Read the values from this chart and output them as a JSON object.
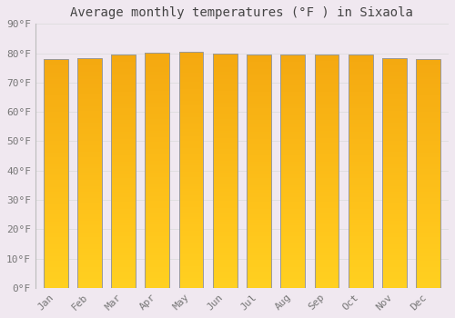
{
  "title": "Average monthly temperatures (°F ) in Sixaola",
  "months": [
    "Jan",
    "Feb",
    "Mar",
    "Apr",
    "May",
    "Jun",
    "Jul",
    "Aug",
    "Sep",
    "Oct",
    "Nov",
    "Dec"
  ],
  "values": [
    78.1,
    78.4,
    79.5,
    80.1,
    80.6,
    80.0,
    79.5,
    79.5,
    79.7,
    79.5,
    78.4,
    78.1
  ],
  "bar_color_top": "#F5A800",
  "bar_color_bottom": "#FFD040",
  "bar_edge_color": "#999999",
  "ylim": [
    0,
    90
  ],
  "yticks": [
    0,
    10,
    20,
    30,
    40,
    50,
    60,
    70,
    80,
    90
  ],
  "background_color": "#f0e8f0",
  "plot_bg_color": "#f0e8f0",
  "grid_color": "#dddddd",
  "title_fontsize": 10,
  "tick_fontsize": 8,
  "font_family": "monospace"
}
